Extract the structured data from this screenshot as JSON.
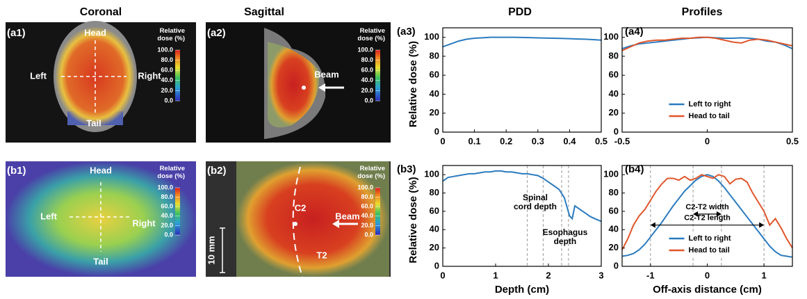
{
  "column_titles": [
    "Coronal",
    "Sagittal",
    "PDD",
    "Profiles"
  ],
  "images": [
    {
      "label": "(a1)",
      "annotations": [
        "Head",
        "Left",
        "Right",
        "Tail"
      ],
      "colorbar": {
        "title": "Relative dose (%)",
        "lim": [
          0,
          100
        ],
        "ticks": [
          {
            "value": 100,
            "label": "100.0"
          },
          {
            "value": 80,
            "label": "80.0"
          },
          {
            "value": 60,
            "label": "60.0"
          },
          {
            "value": 40,
            "label": "40.0"
          },
          {
            "value": 20,
            "label": "20.0"
          },
          {
            "value": 0,
            "label": "0.0"
          }
        ]
      }
    },
    {
      "label": "(a2)",
      "annotations": [
        "Beam"
      ],
      "colorbar": {
        "title": "Relative dose (%)",
        "lim": [
          0,
          100
        ],
        "ticks": [
          {
            "value": 100,
            "label": "100.0"
          },
          {
            "value": 80,
            "label": "80.0"
          },
          {
            "value": 60,
            "label": "60.0"
          },
          {
            "value": 40,
            "label": "40.0"
          },
          {
            "value": 20,
            "label": "20.0"
          },
          {
            "value": 0,
            "label": "0.0"
          }
        ]
      }
    },
    {
      "label": "(b1)",
      "annotations": [
        "Head",
        "Left",
        "Right",
        "Tail"
      ],
      "colorbar": {
        "title": "Relative dose (%)",
        "lim": [
          0,
          100
        ],
        "ticks": [
          {
            "value": 100,
            "label": "100.0"
          },
          {
            "value": 80,
            "label": "80.0"
          },
          {
            "value": 60,
            "label": "60.0"
          },
          {
            "value": 40,
            "label": "40.0"
          },
          {
            "value": 20,
            "label": "20.0"
          },
          {
            "value": 0,
            "label": "0.0"
          }
        ]
      }
    },
    {
      "label": "(b2)",
      "annotations": [
        "C2",
        "Beam",
        "T2",
        "10 mm"
      ],
      "colorbar": {
        "title": "Relative dose (%)",
        "lim": [
          0,
          100
        ],
        "ticks": [
          {
            "value": 100,
            "label": "100.0"
          },
          {
            "value": 80,
            "label": "80.0"
          },
          {
            "value": 60,
            "label": "60.0"
          },
          {
            "value": 40,
            "label": "40.0"
          },
          {
            "value": 20,
            "label": "20.0"
          },
          {
            "value": 0,
            "label": "0.0"
          }
        ]
      }
    }
  ],
  "chart_data": [
    {
      "type": "line",
      "label": "(a3)",
      "ylabel": "Relative dose (%)",
      "color": "#2a7bbf",
      "x": [
        0,
        0.025,
        0.05,
        0.075,
        0.1,
        0.125,
        0.15,
        0.175,
        0.2,
        0.225,
        0.25,
        0.275,
        0.3,
        0.325,
        0.35,
        0.375,
        0.4,
        0.425,
        0.45,
        0.475,
        0.5
      ],
      "values": [
        90,
        93,
        96,
        98,
        99,
        99.5,
        100,
        100,
        100,
        100,
        99.8,
        99.6,
        99.4,
        99.2,
        99,
        98.8,
        98.5,
        98.2,
        98,
        97.5,
        97
      ],
      "xlim": [
        0,
        0.5
      ],
      "xticks": [
        0,
        0.1,
        0.2,
        0.3,
        0.4,
        0.5
      ],
      "ylim": [
        0,
        110
      ],
      "yticks": [
        0,
        20,
        40,
        60,
        80,
        100
      ]
    },
    {
      "type": "line",
      "label": "(a4)",
      "legend": "lower center",
      "x": [
        -0.5,
        -0.45,
        -0.4,
        -0.35,
        -0.3,
        -0.25,
        -0.2,
        -0.15,
        -0.1,
        -0.05,
        0,
        0.05,
        0.1,
        0.15,
        0.2,
        0.25,
        0.3,
        0.35,
        0.4,
        0.45,
        0.5
      ],
      "series": [
        {
          "name": "Left to right",
          "color": "#2a7bbf",
          "values": [
            88,
            91,
            93,
            94,
            95,
            96,
            97,
            98,
            99,
            99.5,
            100,
            99.5,
            99,
            99,
            99.5,
            99,
            98,
            96,
            95,
            92,
            88
          ]
        },
        {
          "name": "Head to tail",
          "color": "#e0552a",
          "values": [
            86,
            90,
            94,
            96,
            97,
            97,
            98,
            99,
            99,
            100,
            100,
            99,
            97,
            95,
            94,
            97,
            98,
            97,
            95,
            93,
            91
          ]
        }
      ],
      "xlim": [
        -0.5,
        0.5
      ],
      "xticks": [
        -0.5,
        0,
        0.5
      ],
      "ylim": [
        0,
        110
      ],
      "yticks": [
        0,
        20,
        40,
        60,
        80,
        100
      ]
    },
    {
      "type": "line",
      "label": "(b3)",
      "ylabel": "Relative dose (%)",
      "xlabel": "Depth (cm)",
      "color": "#2a7bbf",
      "x": [
        0,
        0.1,
        0.2,
        0.3,
        0.4,
        0.5,
        0.6,
        0.7,
        0.8,
        0.9,
        1,
        1.1,
        1.2,
        1.3,
        1.4,
        1.5,
        1.6,
        1.7,
        1.8,
        1.9,
        2,
        2.1,
        2.2,
        2.3,
        2.4,
        2.45,
        2.5,
        2.6,
        2.7,
        2.8,
        3
      ],
      "values": [
        93,
        97,
        98,
        99,
        100,
        101,
        101,
        102,
        103,
        103,
        104,
        104,
        103,
        103,
        102,
        101,
        101,
        100,
        99,
        96,
        92,
        88,
        84,
        75,
        55,
        52,
        66,
        62,
        58,
        54,
        49
      ],
      "xlim": [
        0,
        3
      ],
      "xticks": [
        0,
        1,
        2,
        3
      ],
      "ylim": [
        0,
        110
      ],
      "yticks": [
        0,
        20,
        40,
        60,
        80,
        100
      ],
      "reference_lines": [
        1.6,
        1.9,
        2.25,
        2.38
      ],
      "annotations": [
        "Spinal cord depth",
        "Esophagus depth"
      ]
    },
    {
      "type": "line",
      "label": "(b4)",
      "xlabel": "Off-axis distance (cm)",
      "legend": "lower center",
      "x": [
        -1.5,
        -1.4,
        -1.3,
        -1.2,
        -1.1,
        -1,
        -0.9,
        -0.8,
        -0.7,
        -0.6,
        -0.5,
        -0.4,
        -0.3,
        -0.2,
        -0.1,
        0,
        0.1,
        0.2,
        0.3,
        0.4,
        0.5,
        0.6,
        0.7,
        0.8,
        0.9,
        1,
        1.1,
        1.2,
        1.3,
        1.4,
        1.5
      ],
      "series": [
        {
          "name": "Left to right",
          "color": "#2a7bbf",
          "values": [
            11,
            12,
            14,
            18,
            24,
            32,
            40,
            48,
            57,
            66,
            74,
            82,
            88,
            94,
            98,
            100,
            98,
            93,
            86,
            78,
            70,
            62,
            54,
            46,
            38,
            30,
            22,
            16,
            12,
            11,
            10
          ]
        },
        {
          "name": "Head to tail",
          "color": "#e0552a",
          "values": [
            18,
            30,
            45,
            55,
            62,
            72,
            82,
            90,
            96,
            96,
            94,
            98,
            94,
            96,
            100,
            98,
            96,
            100,
            98,
            90,
            95,
            96,
            92,
            80,
            70,
            60,
            45,
            52,
            42,
            30,
            20
          ]
        }
      ],
      "xlim": [
        -1.5,
        1.5
      ],
      "xticks": [
        -1,
        0,
        1
      ],
      "ylim": [
        0,
        110
      ],
      "yticks": [
        0,
        20,
        40,
        60,
        80,
        100
      ],
      "reference_lines": [
        -1,
        -0.25,
        0.25,
        1
      ],
      "annotations": [
        "C2-T2 width",
        "C2-T2 length"
      ]
    }
  ]
}
